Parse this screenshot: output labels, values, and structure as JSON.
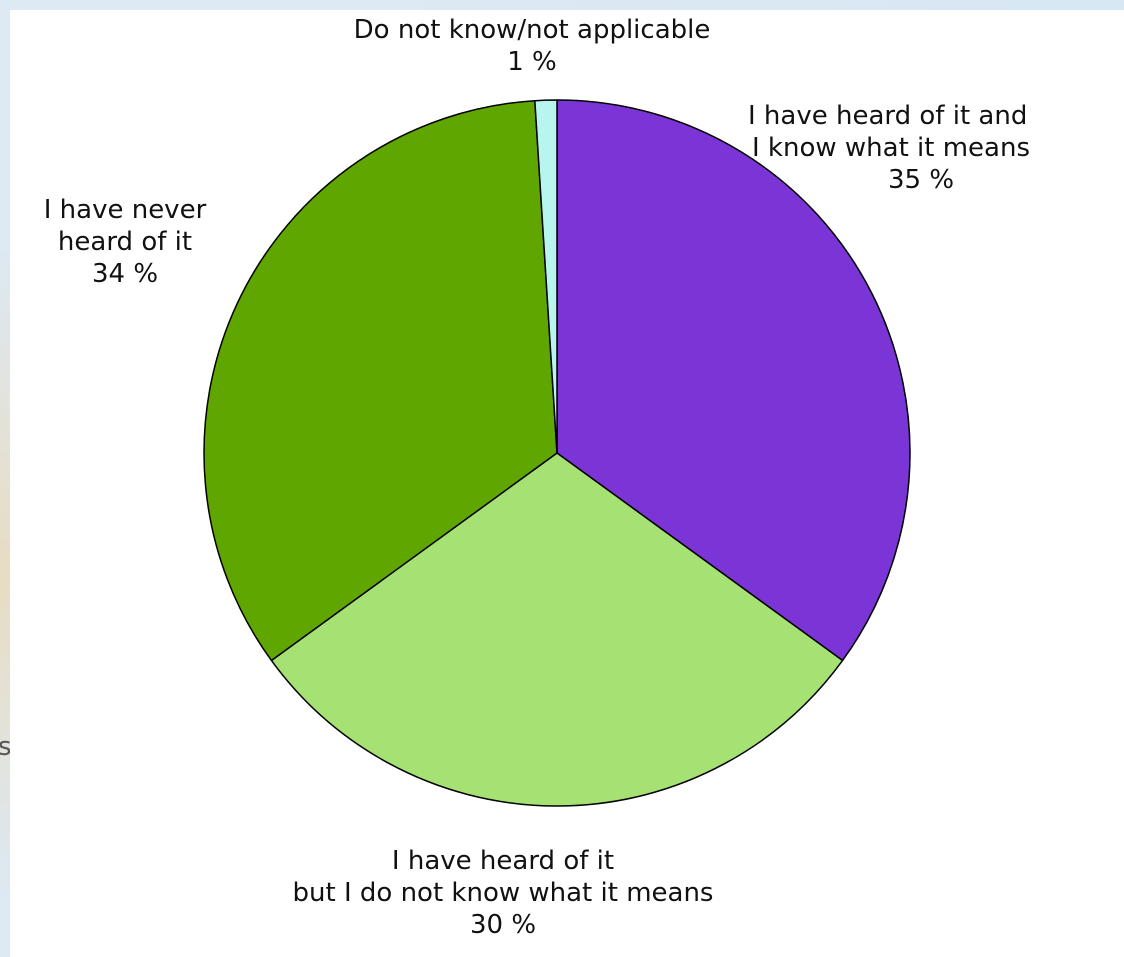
{
  "chart_data": {
    "type": "pie",
    "slices": [
      {
        "line1": "I have heard of it and",
        "line2": "I know what it means",
        "value_label": "35 %",
        "value": 35,
        "color": "#7b35d6"
      },
      {
        "line1": "I have heard of it",
        "line2": "but I do not know what it means",
        "value_label": "30 %",
        "value": 30,
        "color": "#a6e273"
      },
      {
        "line1": "I have never",
        "line2": "heard of it",
        "value_label": "34 %",
        "value": 34,
        "color": "#5fa600"
      },
      {
        "line1": "Do not know/not applicable",
        "line2": "",
        "value_label": "1 %",
        "value": 1,
        "color": "#b8f5ef"
      }
    ],
    "start_angle": "top",
    "direction": "clockwise"
  },
  "background": {
    "stray_text": "s"
  }
}
